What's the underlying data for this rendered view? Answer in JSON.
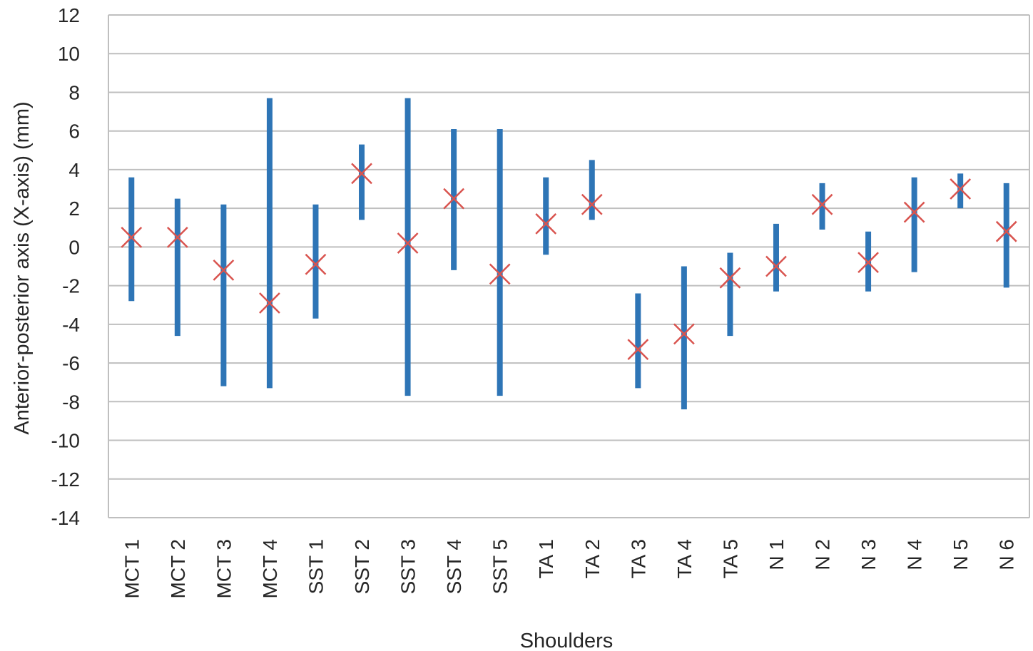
{
  "chart_data": {
    "type": "range-error-bar",
    "title": "",
    "xlabel": "Shoulders",
    "ylabel": "Anterior-posterior axis (X-axis) (mm)",
    "ylim": [
      -14,
      12
    ],
    "ytick_step": 2,
    "yticks": [
      "12",
      "10",
      "8",
      "6",
      "4",
      "2",
      "0",
      "-2",
      "-4",
      "-6",
      "-8",
      "-10",
      "-12",
      "-14"
    ],
    "grid": "horizontal",
    "legend": "none",
    "categories": [
      "MCT 1",
      "MCT 2",
      "MCT 3",
      "MCT 4",
      "SST 1",
      "SST 2",
      "SST 3",
      "SST 4",
      "SST 5",
      "TA 1",
      "TA 2",
      "TA 3",
      "TA 4",
      "TA 5",
      "N 1",
      "N 2",
      "N 3",
      "N 4",
      "N 5",
      "N 6"
    ],
    "min": [
      -2.8,
      -4.6,
      -7.2,
      -7.3,
      -3.7,
      1.4,
      -7.7,
      -1.2,
      -7.7,
      -0.4,
      1.4,
      -7.3,
      -8.4,
      -4.6,
      -2.3,
      0.9,
      -2.3,
      -1.3,
      2.0,
      -2.1
    ],
    "max": [
      3.6,
      2.5,
      2.2,
      7.7,
      2.2,
      5.3,
      7.7,
      6.1,
      6.1,
      3.6,
      4.5,
      -2.4,
      -1.0,
      -0.3,
      1.2,
      3.3,
      0.8,
      3.6,
      3.8,
      3.3
    ],
    "mean": [
      0.5,
      0.5,
      -1.2,
      -2.9,
      -0.9,
      3.8,
      0.2,
      2.5,
      -1.4,
      1.2,
      2.2,
      -5.3,
      -4.5,
      -1.6,
      -1.0,
      2.2,
      -0.8,
      1.8,
      3.0,
      0.8
    ],
    "colors": {
      "range": "#2e75b6",
      "mean": "#d9544f",
      "grid": "#bfbfbf",
      "axis": "#bfbfbf",
      "text": "#262626"
    }
  }
}
